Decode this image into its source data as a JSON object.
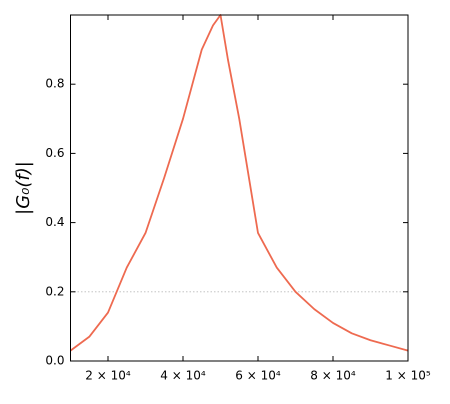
{
  "chart_data": {
    "type": "line",
    "y_label": "|G₀(f)|",
    "x": [
      10000,
      15000,
      20000,
      25000,
      30000,
      35000,
      40000,
      45000,
      48000,
      50000,
      52000,
      55000,
      60000,
      65000,
      70000,
      75000,
      80000,
      85000,
      90000,
      95000,
      100000
    ],
    "series": [
      {
        "color": "#ee6a50",
        "values": [
          0.03,
          0.07,
          0.14,
          0.27,
          0.37,
          0.53,
          0.7,
          0.9,
          0.97,
          1.0,
          0.87,
          0.7,
          0.37,
          0.27,
          0.2,
          0.15,
          0.11,
          0.08,
          0.06,
          0.045,
          0.03
        ]
      }
    ],
    "xlim": [
      10000,
      100000
    ],
    "ylim": [
      0,
      1
    ],
    "xticks": [
      {
        "value": 20000,
        "label": "2 × 10⁴"
      },
      {
        "value": 40000,
        "label": "4 × 10⁴"
      },
      {
        "value": 60000,
        "label": "6 × 10⁴"
      },
      {
        "value": 80000,
        "label": "8 × 10⁴"
      },
      {
        "value": 100000,
        "label": "1 × 10⁵"
      }
    ],
    "yticks": [
      {
        "value": 0,
        "label": "0.0"
      },
      0.2,
      0.4,
      0.6,
      0.8
    ],
    "reference_line": 0.2
  }
}
